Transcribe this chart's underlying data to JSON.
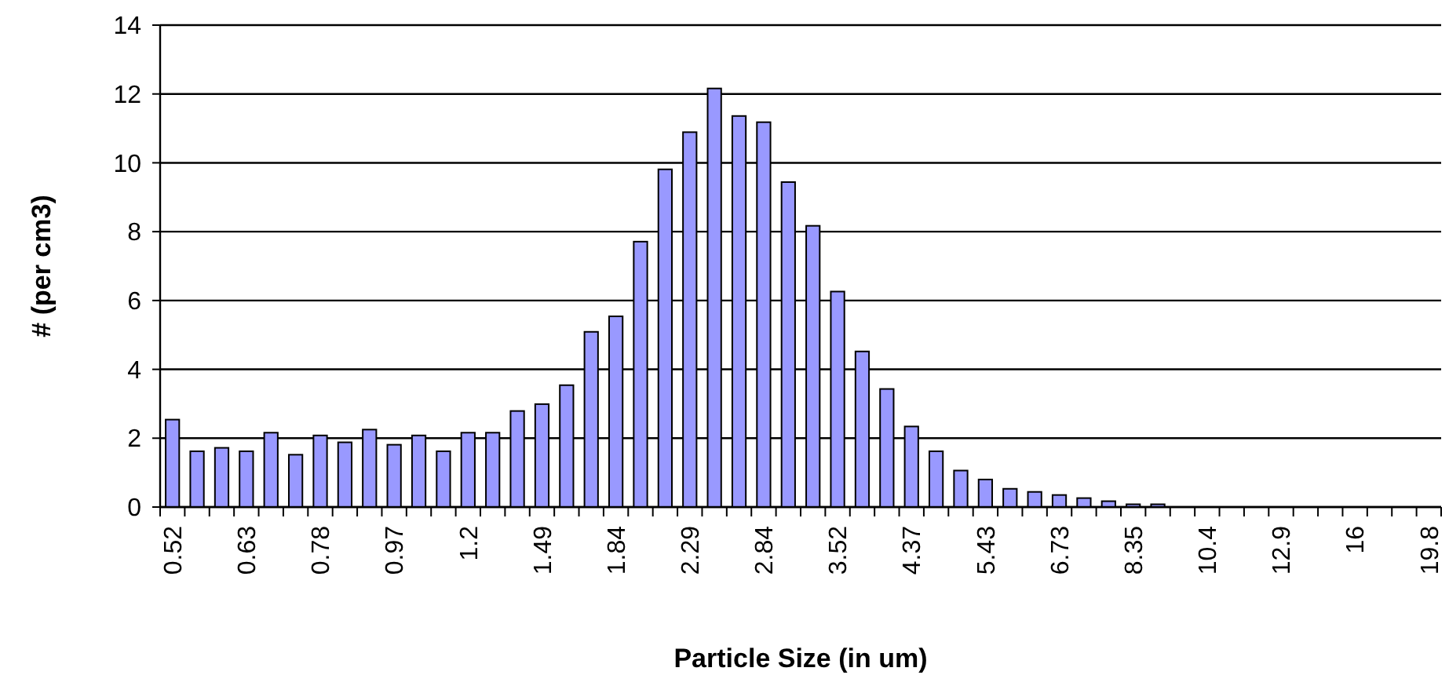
{
  "chart_data": {
    "type": "bar",
    "xlabel": "Particle Size (in um)",
    "ylabel": "# (per cm3)",
    "categories": [
      "0.52",
      null,
      null,
      "0.63",
      null,
      null,
      "0.78",
      null,
      null,
      "0.97",
      null,
      null,
      "1.2",
      null,
      null,
      "1.49",
      null,
      null,
      "1.84",
      null,
      null,
      "2.29",
      null,
      null,
      "2.84",
      null,
      null,
      "3.52",
      null,
      null,
      "4.37",
      null,
      null,
      "5.43",
      null,
      null,
      "6.73",
      null,
      null,
      "8.35",
      null,
      null,
      "10.4",
      null,
      null,
      "12.9",
      null,
      null,
      "16",
      null,
      null,
      "19.8"
    ],
    "values": [
      2.54,
      1.62,
      1.72,
      1.62,
      2.16,
      1.52,
      2.08,
      1.88,
      2.25,
      1.81,
      2.08,
      1.62,
      2.16,
      2.16,
      2.79,
      2.99,
      3.54,
      5.09,
      5.54,
      7.71,
      9.81,
      10.89,
      12.16,
      11.36,
      11.18,
      9.44,
      8.17,
      6.26,
      4.52,
      3.43,
      2.34,
      1.62,
      1.06,
      0.8,
      0.53,
      0.44,
      0.35,
      0.26,
      0.17,
      0.08,
      0.08,
      0,
      0,
      0,
      0,
      0,
      0,
      0,
      0,
      0,
      0,
      0
    ],
    "color": "#9999ff",
    "ylim": [
      0,
      14
    ],
    "yticks": [
      0,
      2,
      4,
      6,
      8,
      10,
      12,
      14
    ],
    "grid": "y"
  }
}
